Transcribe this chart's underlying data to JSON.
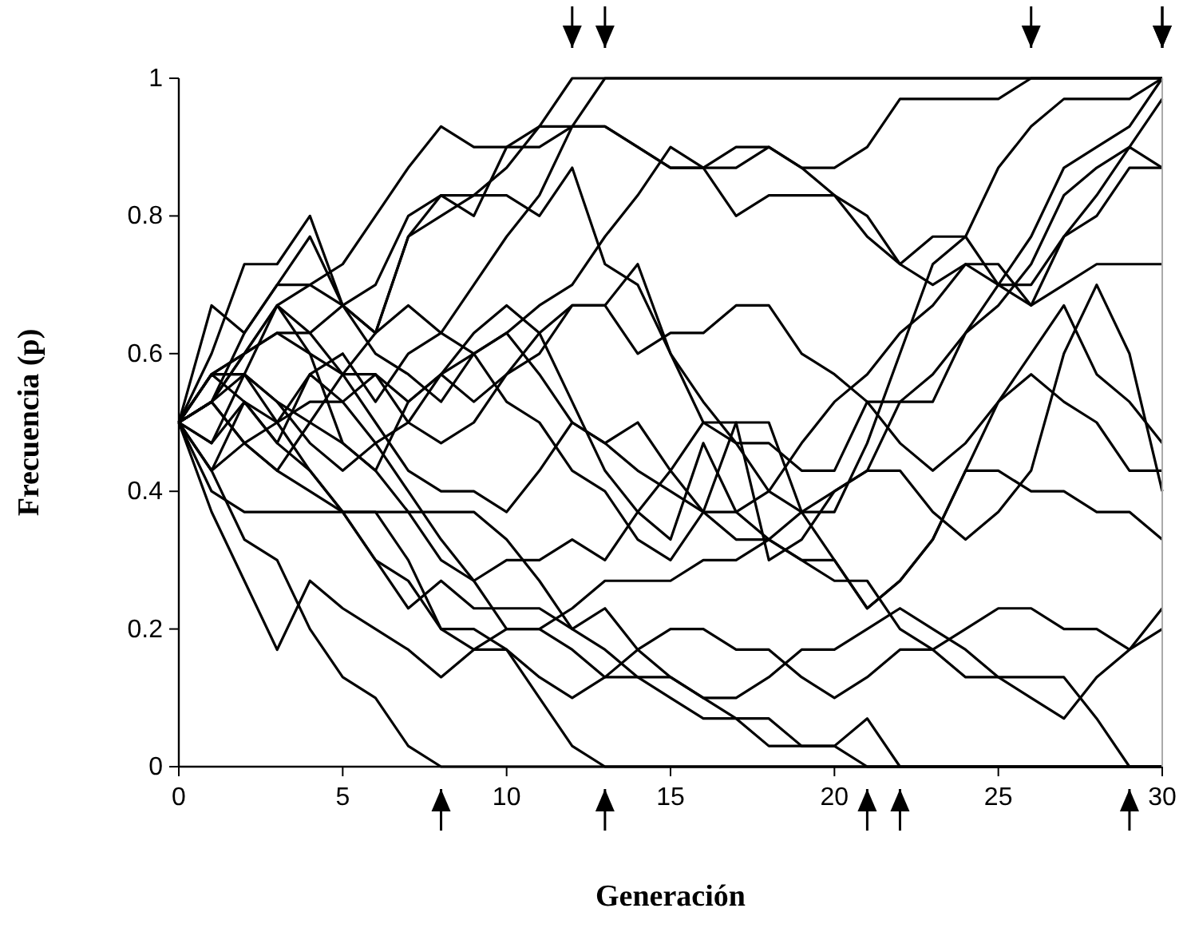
{
  "chart_data": {
    "type": "line",
    "xlabel": "Generación",
    "ylabel": "Frecuencia (p)",
    "x": [
      0,
      1,
      2,
      3,
      4,
      5,
      6,
      7,
      8,
      9,
      10,
      11,
      12,
      13,
      14,
      15,
      16,
      17,
      18,
      19,
      20,
      21,
      22,
      23,
      24,
      25,
      26,
      27,
      28,
      29,
      30
    ],
    "xlim": [
      0,
      30
    ],
    "xticks": [
      0,
      5,
      10,
      15,
      20,
      25,
      30
    ],
    "ylim": [
      0,
      1
    ],
    "yticks": [
      0,
      0.2,
      0.4,
      0.6,
      0.8,
      1
    ],
    "series": [
      {
        "color": "#000000",
        "values": [
          0.5,
          0.57,
          0.6,
          0.67,
          0.63,
          0.67,
          0.63,
          0.77,
          0.83,
          0.83,
          0.87,
          0.93,
          1,
          1,
          1,
          1,
          1,
          1,
          1,
          1,
          1,
          1,
          1,
          1,
          1,
          1,
          1,
          1,
          1,
          1,
          1
        ]
      },
      {
        "color": "#000000",
        "values": [
          0.5,
          0.47,
          0.53,
          0.5,
          0.57,
          0.6,
          0.53,
          0.6,
          0.63,
          0.7,
          0.77,
          0.83,
          0.93,
          1,
          1,
          1,
          1,
          1,
          1,
          1,
          1,
          1,
          1,
          1,
          1,
          1,
          1,
          1,
          1,
          1,
          1
        ]
      },
      {
        "color": "#000000",
        "values": [
          0.5,
          0.57,
          0.57,
          0.53,
          0.47,
          0.43,
          0.47,
          0.5,
          0.57,
          0.6,
          0.63,
          0.67,
          0.7,
          0.77,
          0.83,
          0.9,
          0.87,
          0.87,
          0.9,
          0.87,
          0.87,
          0.9,
          0.97,
          0.97,
          0.97,
          0.97,
          1,
          1,
          1,
          1,
          1
        ]
      },
      {
        "color": "#000000",
        "values": [
          0.5,
          0.53,
          0.6,
          0.63,
          0.6,
          0.57,
          0.5,
          0.43,
          0.4,
          0.4,
          0.37,
          0.43,
          0.5,
          0.47,
          0.43,
          0.4,
          0.37,
          0.33,
          0.33,
          0.37,
          0.4,
          0.43,
          0.53,
          0.53,
          0.63,
          0.7,
          0.77,
          0.87,
          0.9,
          0.93,
          1
        ]
      },
      {
        "color": "#000000",
        "values": [
          0.5,
          0.43,
          0.33,
          0.3,
          0.2,
          0.13,
          0.1,
          0.03,
          0,
          0,
          0,
          0,
          0,
          0,
          0,
          0,
          0,
          0,
          0,
          0,
          0,
          0,
          0,
          0,
          0,
          0,
          0,
          0,
          0,
          0,
          0
        ]
      },
      {
        "color": "#000000",
        "values": [
          0.5,
          0.4,
          0.37,
          0.37,
          0.37,
          0.37,
          0.37,
          0.3,
          0.2,
          0.2,
          0.17,
          0.1,
          0.03,
          0,
          0,
          0,
          0,
          0,
          0,
          0,
          0,
          0,
          0,
          0,
          0,
          0,
          0,
          0,
          0,
          0,
          0
        ]
      },
      {
        "color": "#000000",
        "values": [
          0.5,
          0.53,
          0.47,
          0.43,
          0.4,
          0.37,
          0.37,
          0.37,
          0.37,
          0.37,
          0.33,
          0.27,
          0.2,
          0.17,
          0.13,
          0.1,
          0.07,
          0.07,
          0.03,
          0.03,
          0.03,
          0,
          0,
          0,
          0,
          0,
          0,
          0,
          0,
          0,
          0
        ]
      },
      {
        "color": "#000000",
        "values": [
          0.5,
          0.37,
          0.27,
          0.17,
          0.27,
          0.23,
          0.2,
          0.17,
          0.13,
          0.17,
          0.2,
          0.2,
          0.17,
          0.13,
          0.13,
          0.13,
          0.1,
          0.07,
          0.07,
          0.03,
          0.03,
          0.07,
          0,
          0,
          0,
          0,
          0,
          0,
          0,
          0,
          0
        ]
      },
      {
        "color": "#000000",
        "values": [
          0.5,
          0.57,
          0.53,
          0.47,
          0.43,
          0.37,
          0.3,
          0.23,
          0.27,
          0.23,
          0.23,
          0.23,
          0.2,
          0.23,
          0.17,
          0.13,
          0.1,
          0.1,
          0.13,
          0.17,
          0.17,
          0.2,
          0.23,
          0.2,
          0.17,
          0.13,
          0.13,
          0.13,
          0.07,
          0,
          0
        ]
      },
      {
        "color": "#000000",
        "values": [
          0.5,
          0.6,
          0.73,
          0.73,
          0.8,
          0.67,
          0.63,
          0.77,
          0.8,
          0.83,
          0.83,
          0.8,
          0.87,
          0.73,
          0.7,
          0.6,
          0.5,
          0.47,
          0.4,
          0.37,
          0.37,
          0.47,
          0.6,
          0.73,
          0.77,
          0.7,
          0.7,
          0.77,
          0.83,
          0.9,
          0.87
        ]
      },
      {
        "color": "#000000",
        "values": [
          0.5,
          0.67,
          0.63,
          0.7,
          0.7,
          0.67,
          0.6,
          0.57,
          0.53,
          0.6,
          0.63,
          0.57,
          0.5,
          0.47,
          0.5,
          0.43,
          0.37,
          0.5,
          0.5,
          0.37,
          0.3,
          0.23,
          0.27,
          0.33,
          0.43,
          0.43,
          0.4,
          0.4,
          0.37,
          0.37,
          0.33
        ]
      },
      {
        "color": "#000000",
        "values": [
          0.5,
          0.57,
          0.57,
          0.5,
          0.53,
          0.53,
          0.57,
          0.53,
          0.57,
          0.53,
          0.57,
          0.63,
          0.67,
          0.67,
          0.73,
          0.6,
          0.53,
          0.47,
          0.47,
          0.43,
          0.43,
          0.53,
          0.53,
          0.57,
          0.63,
          0.67,
          0.73,
          0.83,
          0.87,
          0.9,
          0.97
        ]
      },
      {
        "color": "#000000",
        "values": [
          0.5,
          0.47,
          0.57,
          0.67,
          0.6,
          0.47,
          0.43,
          0.53,
          0.57,
          0.63,
          0.67,
          0.63,
          0.53,
          0.43,
          0.37,
          0.33,
          0.47,
          0.37,
          0.33,
          0.3,
          0.3,
          0.23,
          0.27,
          0.33,
          0.43,
          0.53,
          0.6,
          0.67,
          0.57,
          0.53,
          0.47
        ]
      },
      {
        "color": "#000000",
        "values": [
          0.5,
          0.53,
          0.47,
          0.43,
          0.5,
          0.47,
          0.43,
          0.37,
          0.3,
          0.27,
          0.3,
          0.3,
          0.33,
          0.3,
          0.37,
          0.43,
          0.5,
          0.5,
          0.3,
          0.33,
          0.4,
          0.43,
          0.43,
          0.37,
          0.33,
          0.37,
          0.43,
          0.6,
          0.7,
          0.6,
          0.4
        ]
      },
      {
        "color": "#000000",
        "values": [
          0.5,
          0.43,
          0.47,
          0.5,
          0.43,
          0.37,
          0.3,
          0.27,
          0.2,
          0.17,
          0.17,
          0.13,
          0.1,
          0.13,
          0.17,
          0.2,
          0.2,
          0.17,
          0.17,
          0.13,
          0.1,
          0.13,
          0.17,
          0.17,
          0.2,
          0.23,
          0.23,
          0.2,
          0.2,
          0.17,
          0.2
        ]
      },
      {
        "color": "#000000",
        "values": [
          0.5,
          0.43,
          0.53,
          0.47,
          0.57,
          0.53,
          0.47,
          0.4,
          0.33,
          0.27,
          0.2,
          0.2,
          0.23,
          0.27,
          0.27,
          0.27,
          0.3,
          0.3,
          0.33,
          0.3,
          0.27,
          0.27,
          0.2,
          0.17,
          0.13,
          0.13,
          0.1,
          0.07,
          0.13,
          0.17,
          0.23
        ]
      },
      {
        "color": "#000000",
        "values": [
          0.5,
          0.53,
          0.57,
          0.53,
          0.5,
          0.57,
          0.63,
          0.67,
          0.63,
          0.6,
          0.53,
          0.5,
          0.43,
          0.4,
          0.33,
          0.3,
          0.37,
          0.37,
          0.4,
          0.47,
          0.53,
          0.57,
          0.63,
          0.67,
          0.73,
          0.73,
          0.67,
          0.7,
          0.73,
          0.73,
          0.73
        ]
      },
      {
        "color": "#000000",
        "values": [
          0.5,
          0.53,
          0.6,
          0.67,
          0.7,
          0.73,
          0.8,
          0.87,
          0.93,
          0.9,
          0.9,
          0.9,
          0.93,
          0.93,
          0.9,
          0.87,
          0.87,
          0.9,
          0.9,
          0.87,
          0.83,
          0.8,
          0.73,
          0.7,
          0.73,
          0.7,
          0.67,
          0.77,
          0.8,
          0.87,
          0.87
        ]
      },
      {
        "color": "#000000",
        "values": [
          0.5,
          0.57,
          0.6,
          0.63,
          0.63,
          0.57,
          0.57,
          0.5,
          0.47,
          0.5,
          0.57,
          0.6,
          0.67,
          0.67,
          0.6,
          0.63,
          0.63,
          0.67,
          0.67,
          0.6,
          0.57,
          0.53,
          0.47,
          0.43,
          0.47,
          0.53,
          0.57,
          0.53,
          0.5,
          0.43,
          0.43
        ]
      },
      {
        "color": "#000000",
        "values": [
          0.5,
          0.53,
          0.63,
          0.7,
          0.77,
          0.67,
          0.7,
          0.8,
          0.83,
          0.8,
          0.9,
          0.93,
          0.93,
          0.93,
          0.9,
          0.87,
          0.87,
          0.8,
          0.83,
          0.83,
          0.83,
          0.77,
          0.73,
          0.77,
          0.77,
          0.87,
          0.93,
          0.97,
          0.97,
          0.97,
          1
        ]
      }
    ]
  }
}
